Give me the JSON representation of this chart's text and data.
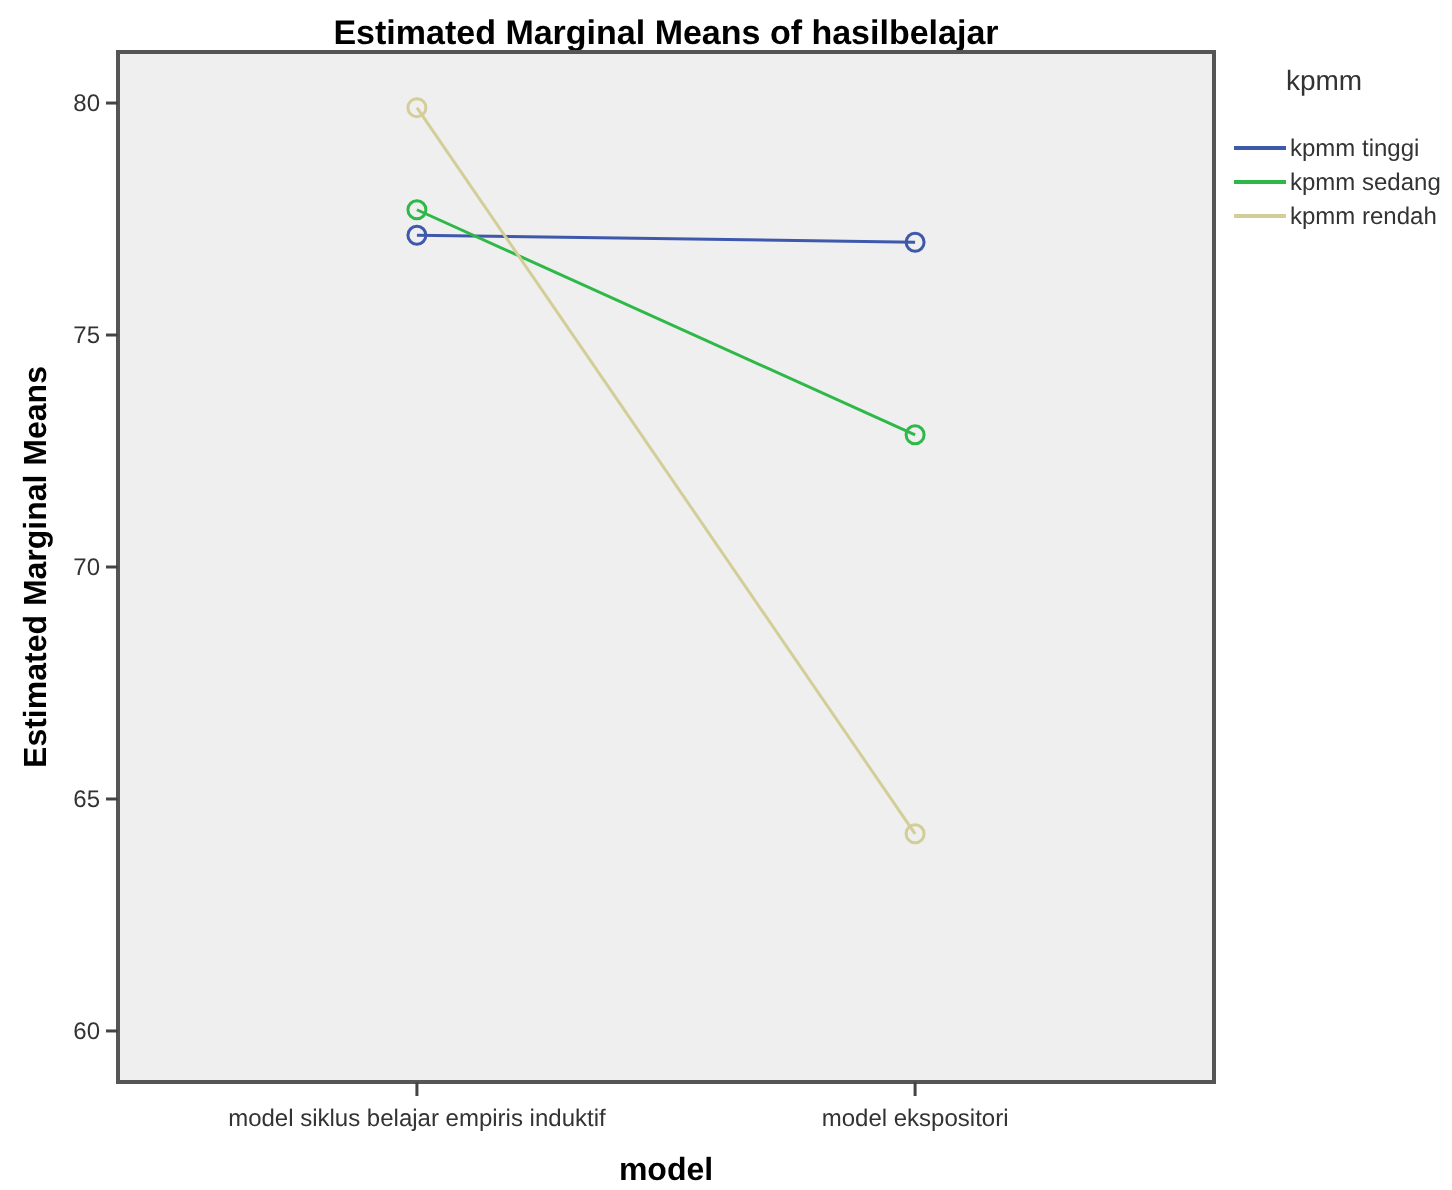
{
  "chart_data": {
    "type": "line",
    "title": "Estimated Marginal Means of hasilbelajar",
    "xlabel": "model",
    "ylabel": "Estimated Marginal Means",
    "legend_title": "kpmm",
    "categories": [
      "model siklus belajar empiris induktif",
      "model ekspositori"
    ],
    "series": [
      {
        "name": "kpmm tinggi",
        "color": "#3e58ac",
        "values": [
          77.15,
          77.0
        ]
      },
      {
        "name": "kpmm sedang",
        "color": "#2eb848",
        "values": [
          77.7,
          72.85
        ]
      },
      {
        "name": "kpmm rendah",
        "color": "#d3ce97",
        "values": [
          79.9,
          64.25
        ]
      }
    ],
    "ylim": [
      58.9,
      81.1
    ],
    "yticks": [
      60,
      65,
      70,
      75,
      80
    ],
    "marker": "circle",
    "legend": "right",
    "grid": false
  }
}
